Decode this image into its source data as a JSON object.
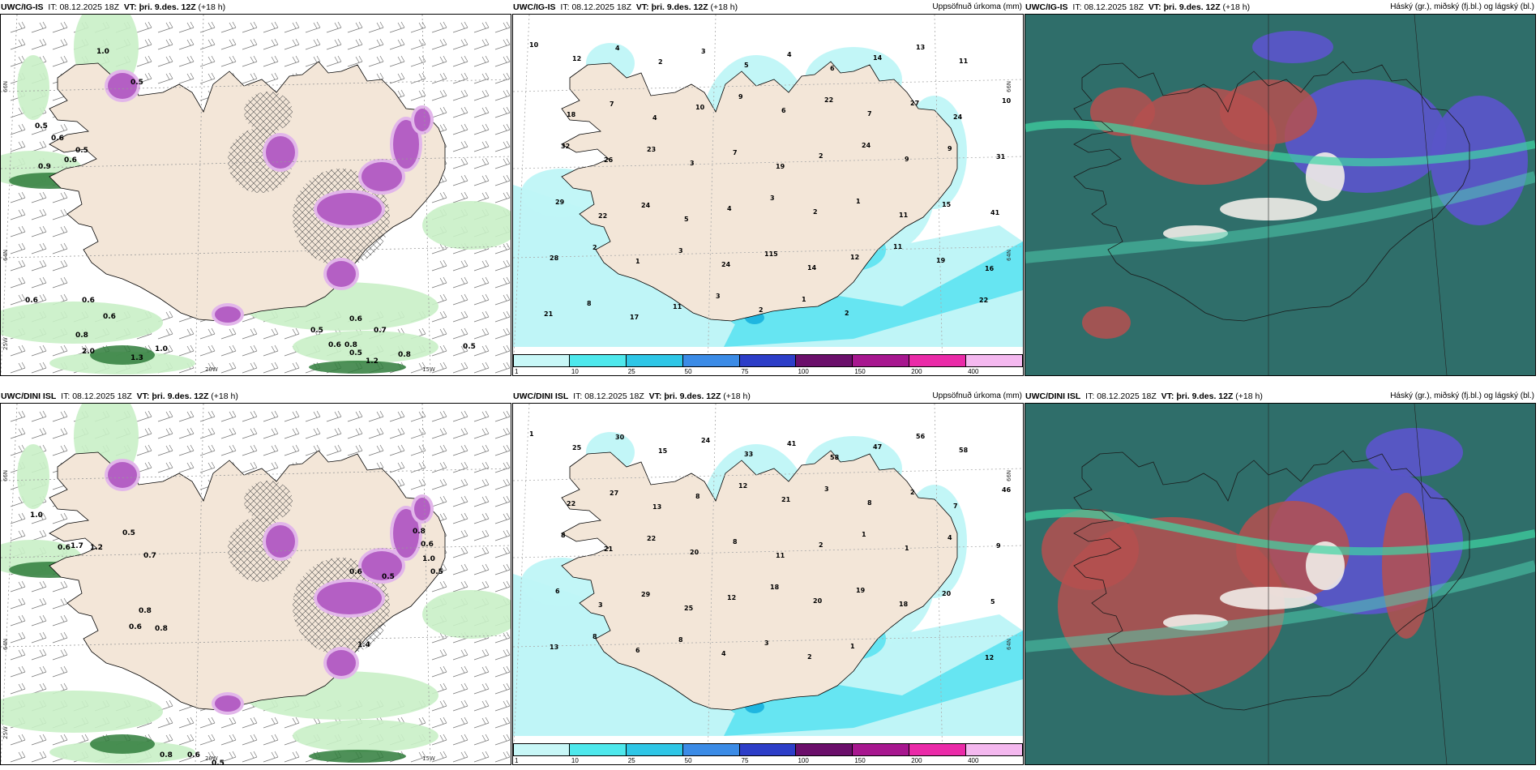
{
  "colors": {
    "land": "#f3e6d8",
    "wind_green_light": "#c9f0c6",
    "wind_green": "#8fd48c",
    "wind_green_dark": "#2f7d3b",
    "snow_purple": "#b45fc4",
    "snow_purple_light": "#e2b6ea",
    "precip_light": "#bff5f7",
    "precip_mid": "#66e5f2",
    "precip_dark": "#1fb6e0",
    "cloud_teal": "#2f6e6a",
    "cloud_red": "#b5504f",
    "cloud_blue": "#5a55c8"
  },
  "panels": [
    {
      "model": "UWC/IG-IS",
      "it_label": "IT:",
      "it_value": "08.12.2025 18Z",
      "vt_label": "VT:",
      "vt_value": "þri. 9.des. 12Z",
      "lead": "(+18 h)",
      "kind": "snow",
      "right_title": "",
      "lat_labels": [
        "66N",
        "64N",
        "25W"
      ],
      "lon_labels": [
        "20W",
        "15W"
      ],
      "values": [
        "1.0",
        "0.5",
        "0.6",
        "0.9",
        "0.6",
        "0.5",
        "0.6",
        "0.6",
        "0.6",
        "0.8",
        "2.0",
        "1.3",
        "1.0",
        "0.5",
        "0.6",
        "0.7",
        "0.8",
        "0.6",
        "0.5",
        "0.8",
        "0.5",
        "1.2",
        "0.5"
      ]
    },
    {
      "model": "UWC/IG-IS",
      "it_label": "IT:",
      "it_value": "08.12.2025 18Z",
      "vt_label": "VT:",
      "vt_value": "þri. 9.des. 12Z",
      "lead": "(+18 h)",
      "kind": "precip",
      "right_title": "Uppsöfnuð úrkoma (mm)",
      "lat_labels": [
        "66N",
        "64N"
      ],
      "lon_labels": [],
      "values": [
        "10",
        "12",
        "4",
        "2",
        "3",
        "5",
        "4",
        "6",
        "14",
        "13",
        "11",
        "10",
        "18",
        "7",
        "4",
        "10",
        "9",
        "6",
        "22",
        "7",
        "27",
        "24",
        "31",
        "32",
        "26",
        "23",
        "3",
        "7",
        "19",
        "2",
        "24",
        "9",
        "9",
        "41",
        "29",
        "22",
        "24",
        "5",
        "4",
        "3",
        "2",
        "1",
        "11",
        "15",
        "16",
        "28",
        "2",
        "1",
        "3",
        "24",
        "115",
        "14",
        "12",
        "11",
        "19",
        "22",
        "21",
        "8",
        "17",
        "11",
        "3",
        "2",
        "1",
        "2"
      ],
      "colorbar": {
        "labels": [
          "1",
          "10",
          "25",
          "50",
          "75",
          "100",
          "150",
          "200",
          "400"
        ],
        "colors": [
          "#c8f7f7",
          "#4ee8ec",
          "#2ec6e6",
          "#3b8be6",
          "#2d3ec8",
          "#6b0f6b",
          "#a7178f",
          "#ea2aa8",
          "#f4b8ef"
        ]
      }
    },
    {
      "model": "UWC/IG-IS",
      "it_label": "IT:",
      "it_value": "08.12.2025 18Z",
      "vt_label": "VT:",
      "vt_value": "þri. 9.des. 12Z",
      "lead": "(+18 h)",
      "kind": "cloud",
      "right_title": "Háský (gr.), miðský (fj.bl.) og lágský (bl.)",
      "values": []
    },
    {
      "model": "UWC/DINI ISL",
      "it_label": "IT:",
      "it_value": "08.12.2025 18Z",
      "vt_label": "VT:",
      "vt_value": "þri. 9.des. 12Z",
      "lead": "(+18 h)",
      "kind": "snow",
      "right_title": "",
      "lat_labels": [
        "66N",
        "64N",
        "25W"
      ],
      "lon_labels": [
        "20W",
        "15W"
      ],
      "values": [
        "1.0",
        "0.6",
        "1.7",
        "1.2",
        "0.5",
        "0.7",
        "0.8",
        "0.6",
        "0.8",
        "0.8",
        "0.6",
        "0.5",
        "0.5",
        "0.8",
        "0.6",
        "1.0",
        "0.6",
        "0.5",
        "1.4"
      ]
    },
    {
      "model": "UWC/DINI ISL",
      "it_label": "IT:",
      "it_value": "08.12.2025 18Z",
      "vt_label": "VT:",
      "vt_value": "þri. 9.des. 12Z",
      "lead": "(+18 h)",
      "kind": "precip",
      "right_title": "Uppsöfnuð úrkoma (mm)",
      "lat_labels": [
        "66N",
        "64N"
      ],
      "lon_labels": [],
      "values": [
        "1",
        "25",
        "30",
        "15",
        "24",
        "33",
        "41",
        "58",
        "47",
        "56",
        "58",
        "46",
        "22",
        "27",
        "13",
        "8",
        "12",
        "21",
        "3",
        "8",
        "2",
        "7",
        "9",
        "8",
        "21",
        "22",
        "20",
        "8",
        "11",
        "2",
        "1",
        "1",
        "4",
        "5",
        "6",
        "3",
        "29",
        "25",
        "12",
        "18",
        "20",
        "19",
        "18",
        "20",
        "12",
        "13",
        "8",
        "6",
        "8",
        "4",
        "3",
        "2",
        "1"
      ],
      "colorbar": {
        "labels": [
          "1",
          "10",
          "25",
          "50",
          "75",
          "100",
          "150",
          "200",
          "400"
        ],
        "colors": [
          "#c8f7f7",
          "#4ee8ec",
          "#2ec6e6",
          "#3b8be6",
          "#2d3ec8",
          "#6b0f6b",
          "#a7178f",
          "#ea2aa8",
          "#f4b8ef"
        ]
      }
    },
    {
      "model": "UWC/DINI ISL",
      "it_label": "IT:",
      "it_value": "08.12.2025 18Z",
      "vt_label": "VT:",
      "vt_value": "þri. 9.des. 12Z",
      "lead": "(+18 h)",
      "kind": "cloud",
      "right_title": "Háský (gr.), miðský (fj.bl.) og lágský (bl.)",
      "values": []
    }
  ]
}
